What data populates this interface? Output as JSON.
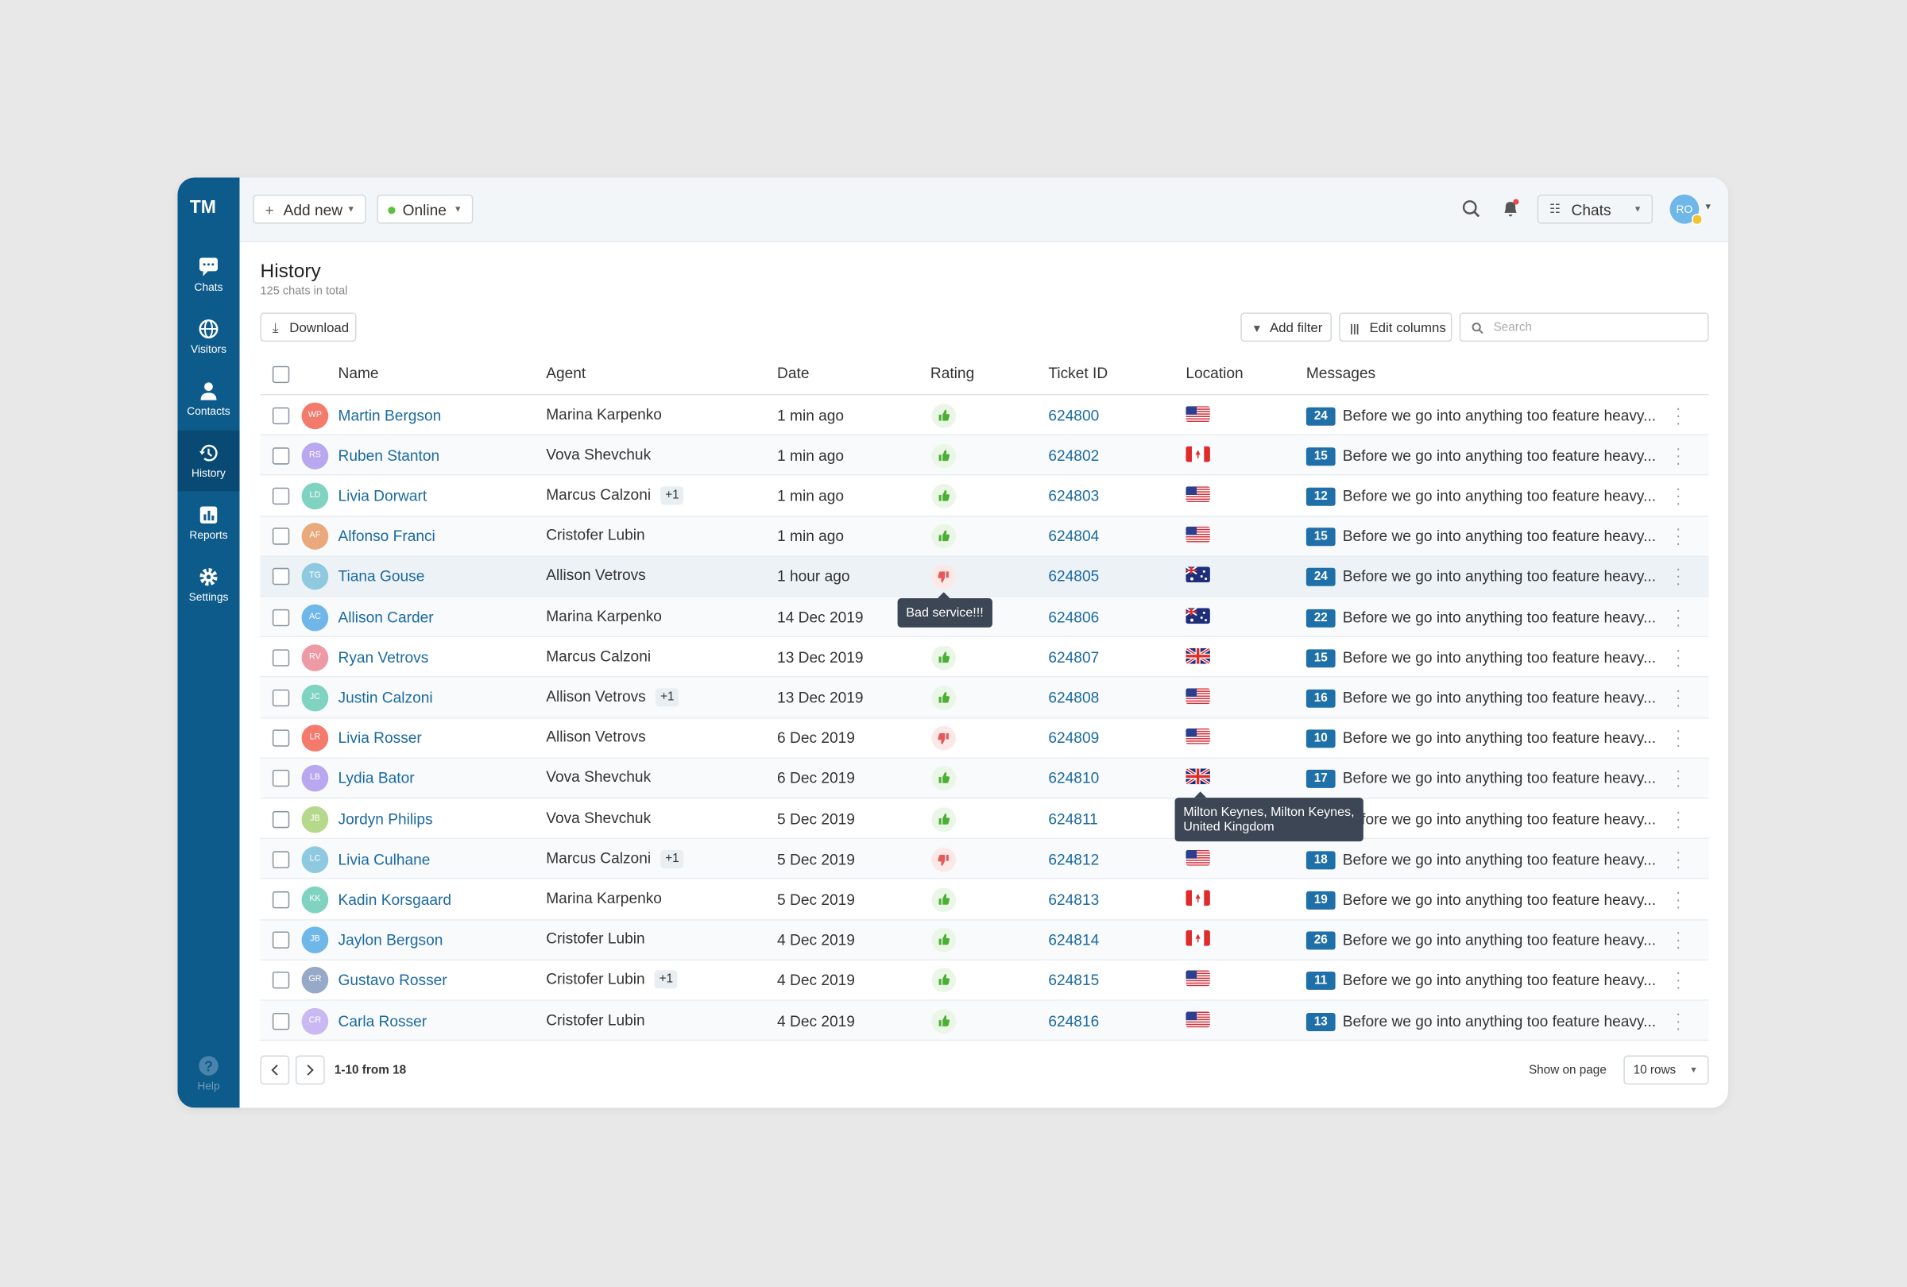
{
  "brand": "TM",
  "sidebar": {
    "items": [
      "Chats",
      "Visitors",
      "Contacts",
      "History",
      "Reports",
      "Settings"
    ],
    "active": 3,
    "help": "Help"
  },
  "topbar": {
    "add_new": "Add new",
    "status": "Online",
    "workspace": "Chats",
    "user_initials": "RO"
  },
  "header": {
    "title": "History",
    "subtitle": "125 chats in total"
  },
  "toolbar": {
    "download": "Download",
    "add_filter": "Add filter",
    "edit_columns": "Edit columns",
    "search_placeholder": "Search"
  },
  "table": {
    "columns": [
      "Name",
      "Agent",
      "Date",
      "Rating",
      "Ticket ID",
      "Location",
      "Messages"
    ],
    "rows": [
      {
        "initials": "WP",
        "color": "#f47a6b",
        "name": "Martin Bergson",
        "agent": "Marina Karpenko",
        "date": "1 min ago",
        "rating": "up",
        "ticket": "624800",
        "flag": "us",
        "messages": 24,
        "preview": "Before we go into anything too feature heavy..."
      },
      {
        "initials": "RS",
        "color": "#b9a7f0",
        "name": "Ruben Stanton",
        "agent": "Vova Shevchuk",
        "date": "1 min ago",
        "rating": "up",
        "ticket": "624802",
        "flag": "ca",
        "messages": 15,
        "preview": "Before we go into anything too feature heavy..."
      },
      {
        "initials": "LD",
        "color": "#7fd3c0",
        "name": "Livia Dorwart",
        "agent": "Marcus Calzoni",
        "agent_extra": "+1",
        "date": "1 min ago",
        "rating": "up",
        "ticket": "624803",
        "flag": "us",
        "messages": 12,
        "preview": "Before we go into anything too feature heavy..."
      },
      {
        "initials": "AF",
        "color": "#e9a97c",
        "name": "Alfonso Franci",
        "agent": "Cristofer Lubin",
        "date": "1 min ago",
        "rating": "up",
        "ticket": "624804",
        "flag": "us",
        "messages": 15,
        "preview": "Before we go into anything too feature heavy..."
      },
      {
        "initials": "TG",
        "color": "#8ec9e0",
        "name": "Tiana Gouse",
        "agent": "Allison Vetrovs",
        "date": "1 hour ago",
        "rating": "down",
        "rating_tooltip": "Bad service!!!",
        "ticket": "624805",
        "flag": "au",
        "messages": 24,
        "preview": "Before we go into anything too feature heavy...",
        "highlight": true
      },
      {
        "initials": "AC",
        "color": "#6fb7e8",
        "name": "Allison Carder",
        "agent": "Marina Karpenko",
        "date": "14 Dec 2019",
        "rating": null,
        "ticket": "624806",
        "flag": "au",
        "messages": 22,
        "preview": "Before we go into anything too feature heavy..."
      },
      {
        "initials": "RV",
        "color": "#ee9aa5",
        "name": "Ryan Vetrovs",
        "agent": "Marcus Calzoni",
        "date": "13 Dec 2019",
        "rating": "up",
        "ticket": "624807",
        "flag": "gb",
        "messages": 15,
        "preview": "Before we go into anything too feature heavy..."
      },
      {
        "initials": "JC",
        "color": "#7fd3c0",
        "name": "Justin Calzoni",
        "agent": "Allison Vetrovs",
        "agent_extra": "+1",
        "date": "13 Dec 2019",
        "rating": "up",
        "ticket": "624808",
        "flag": "us",
        "messages": 16,
        "preview": "Before we go into anything too feature heavy..."
      },
      {
        "initials": "LR",
        "color": "#f47a6b",
        "name": "Livia Rosser",
        "agent": "Allison Vetrovs",
        "date": "6 Dec 2019",
        "rating": "down",
        "ticket": "624809",
        "flag": "us",
        "messages": 10,
        "preview": "Before we go into anything too feature heavy..."
      },
      {
        "initials": "LB",
        "color": "#b9a7f0",
        "name": "Lydia Bator",
        "agent": "Vova Shevchuk",
        "date": "6 Dec 2019",
        "rating": "up",
        "ticket": "624810",
        "flag": "gb",
        "location_tooltip": [
          "Milton Keynes, Milton Keynes,",
          "United Kingdom"
        ],
        "messages": 17,
        "preview": "Before we go into anything too feature heavy..."
      },
      {
        "initials": "JB",
        "color": "#b5d98a",
        "name": "Jordyn Philips",
        "agent": "Vova Shevchuk",
        "date": "5 Dec 2019",
        "rating": "up",
        "ticket": "624811",
        "flag": null,
        "messages": null,
        "preview": "Before we go into anything too feature heavy..."
      },
      {
        "initials": "LC",
        "color": "#8ec9e0",
        "name": "Livia Culhane",
        "agent": "Marcus Calzoni",
        "agent_extra": "+1",
        "date": "5 Dec 2019",
        "rating": "down",
        "ticket": "624812",
        "flag": "us",
        "messages": 18,
        "preview": "Before we go into anything too feature heavy..."
      },
      {
        "initials": "KK",
        "color": "#7fd3c0",
        "name": "Kadin Korsgaard",
        "agent": "Marina Karpenko",
        "date": "5 Dec 2019",
        "rating": "up",
        "ticket": "624813",
        "flag": "ca",
        "messages": 19,
        "preview": "Before we go into anything too feature heavy..."
      },
      {
        "initials": "JB",
        "color": "#6fb7e8",
        "name": "Jaylon Bergson",
        "agent": "Cristofer Lubin",
        "date": "4 Dec 2019",
        "rating": "up",
        "ticket": "624814",
        "flag": "ca",
        "messages": 26,
        "preview": "Before we go into anything too feature heavy..."
      },
      {
        "initials": "GR",
        "color": "#96a9c8",
        "name": "Gustavo Rosser",
        "agent": "Cristofer Lubin",
        "agent_extra": "+1",
        "date": "4 Dec 2019",
        "rating": "up",
        "ticket": "624815",
        "flag": "us",
        "messages": 11,
        "preview": "Before we go into anything too feature heavy..."
      },
      {
        "initials": "CR",
        "color": "#c9b8f2",
        "name": "Carla Rosser",
        "agent": "Cristofer Lubin",
        "date": "4 Dec 2019",
        "rating": "up",
        "ticket": "624816",
        "flag": "us",
        "messages": 13,
        "preview": "Before we go into anything too feature heavy..."
      }
    ]
  },
  "footer": {
    "range": "1-10 from 18",
    "show_on_page": "Show on page",
    "rows_per_page": "10 rows"
  }
}
